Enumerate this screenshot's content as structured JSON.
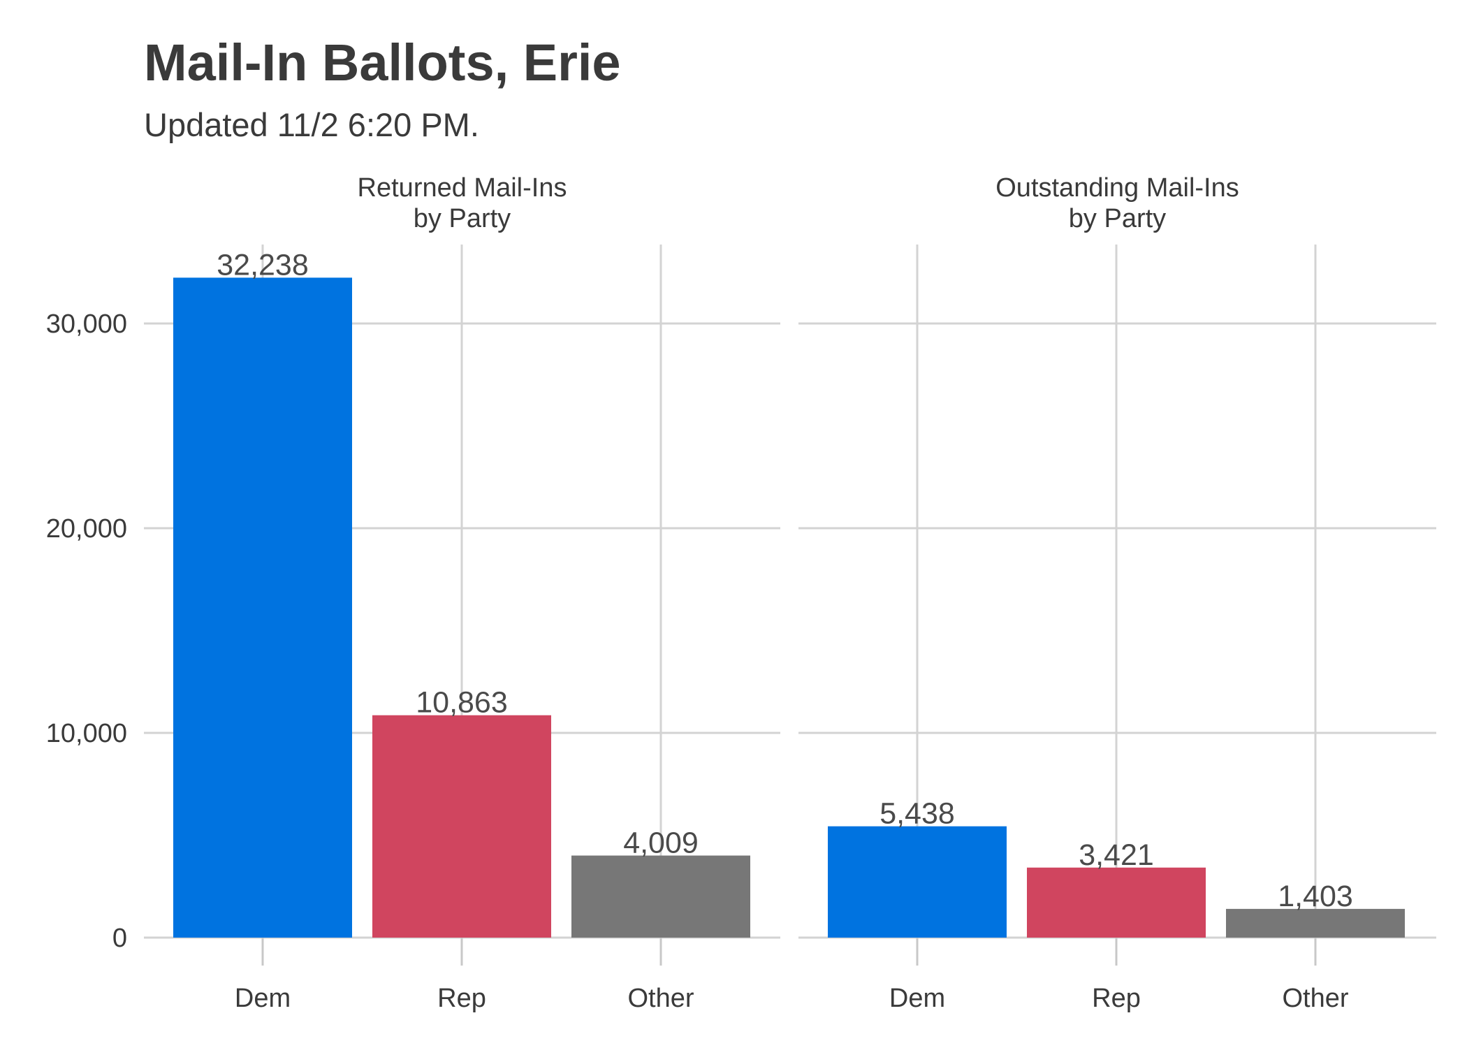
{
  "chart_data": {
    "type": "bar",
    "title": "Mail-In Ballots, Erie",
    "subtitle": "Updated 11/2 6:20 PM.",
    "xlabel": "",
    "ylabel": "",
    "categories": [
      "Dem",
      "Rep",
      "Other"
    ],
    "ylim": [
      0,
      34000
    ],
    "yticks": [
      0,
      10000,
      20000,
      30000
    ],
    "ytick_labels": [
      "0",
      "10,000",
      "20,000",
      "30,000"
    ],
    "grid": true,
    "legend": "none",
    "colors": {
      "Dem": "#0073e0",
      "Rep": "#d0455f",
      "Other": "#777777"
    },
    "facets": [
      {
        "label_line1": "Returned Mail-Ins",
        "label_line2": "by Party",
        "values": [
          32238,
          10863,
          4009
        ],
        "value_labels": [
          "32,238",
          "10,863",
          "4,009"
        ]
      },
      {
        "label_line1": "Outstanding Mail-Ins",
        "label_line2": "by Party",
        "values": [
          5438,
          3421,
          1403
        ],
        "value_labels": [
          "5,438",
          "3,421",
          "1,403"
        ]
      }
    ]
  }
}
